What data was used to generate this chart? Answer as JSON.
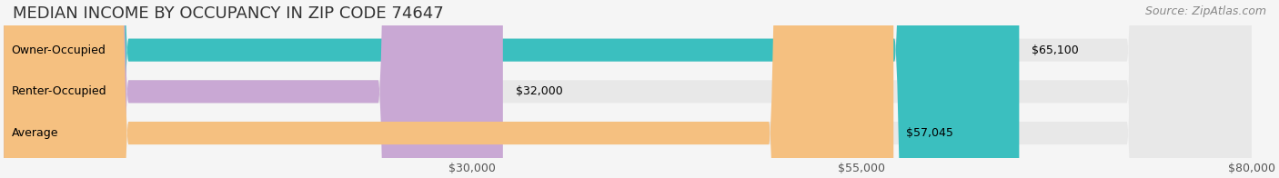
{
  "title": "MEDIAN INCOME BY OCCUPANCY IN ZIP CODE 74647",
  "source": "Source: ZipAtlas.com",
  "categories": [
    "Owner-Occupied",
    "Renter-Occupied",
    "Average"
  ],
  "values": [
    65100,
    32000,
    57045
  ],
  "labels": [
    "$65,100",
    "$32,000",
    "$57,045"
  ],
  "bar_colors": [
    "#3bbfbf",
    "#c9a8d4",
    "#f5c080"
  ],
  "bar_bg_color": "#e8e8e8",
  "xlim": [
    0,
    80000
  ],
  "xticks": [
    30000,
    55000,
    80000
  ],
  "xtick_labels": [
    "$30,000",
    "$55,000",
    "$80,000"
  ],
  "title_fontsize": 13,
  "source_fontsize": 9,
  "label_fontsize": 9,
  "cat_fontsize": 9,
  "tick_fontsize": 9,
  "bar_height": 0.55,
  "background_color": "#f5f5f5"
}
